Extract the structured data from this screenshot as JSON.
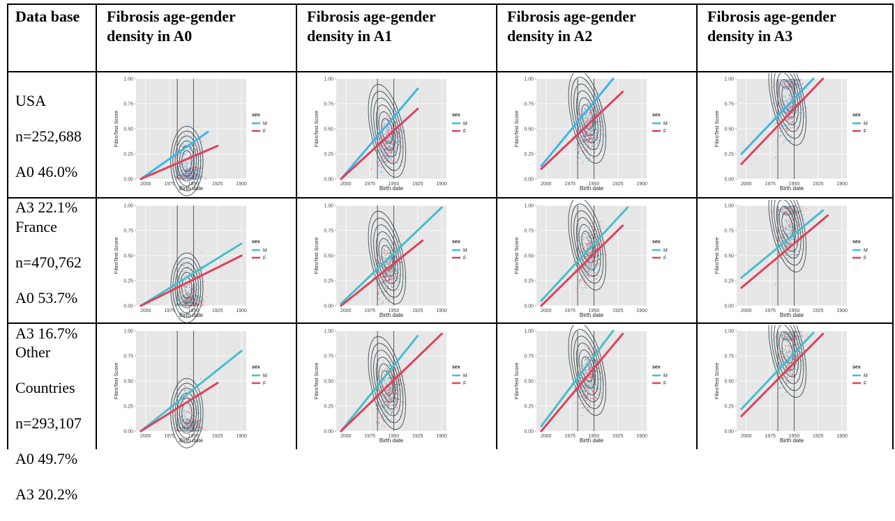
{
  "table": {
    "headers": [
      "Data base",
      "Fibrosis age-gender density in A0",
      "Fibrosis age-gender density in A1",
      "Fibrosis age-gender density in A2",
      "Fibrosis age-gender density in A3"
    ],
    "rows": [
      {
        "lines": [
          "USA",
          "n=252,688",
          "A0 46.0%",
          "A3 22.1%"
        ]
      },
      {
        "lines": [
          "France",
          "n=470,762",
          "A0 53.7%",
          "A3 16.7%"
        ]
      },
      {
        "lines": [
          "Other",
          "Countries",
          "n=293,107",
          "A0 49.7%",
          "A3 20.2%"
        ]
      }
    ]
  },
  "plot_labels": {
    "xlabel": "Birth date",
    "ylabel": "FibroTest Score",
    "x_ticks": [
      "2000",
      "1975",
      "1950",
      "1925",
      "1900"
    ],
    "y_ticks": [
      "0.00",
      "0.25",
      "0.50",
      "0.75",
      "1.00"
    ],
    "legend_title": "sex",
    "legend_items": [
      "M",
      "F"
    ]
  },
  "colors": {
    "usa_m": "#3ab7e8",
    "usa_f": "#e0405a",
    "other_m": "#45bfcc",
    "other_f": "#e0405a",
    "contour": "#4a5a60",
    "panel_bg": "#e6e6e6"
  },
  "chart_data": [
    {
      "type": "scatter",
      "row": "USA",
      "stage": "A0",
      "xlim": [
        2010,
        1895
      ],
      "ylim": [
        0,
        1
      ],
      "series": [
        {
          "name": "M",
          "x": [
            2005,
            1935
          ],
          "y": [
            0.0,
            0.47
          ]
        },
        {
          "name": "F",
          "x": [
            2005,
            1925
          ],
          "y": [
            0.0,
            0.33
          ]
        }
      ]
    },
    {
      "type": "scatter",
      "row": "USA",
      "stage": "A1",
      "xlim": [
        2010,
        1895
      ],
      "ylim": [
        0,
        1
      ],
      "series": [
        {
          "name": "M",
          "x": [
            2005,
            1925
          ],
          "y": [
            0.0,
            0.9
          ]
        },
        {
          "name": "F",
          "x": [
            2005,
            1925
          ],
          "y": [
            0.0,
            0.7
          ]
        }
      ]
    },
    {
      "type": "scatter",
      "row": "USA",
      "stage": "A2",
      "xlim": [
        2010,
        1895
      ],
      "ylim": [
        0,
        1
      ],
      "series": [
        {
          "name": "M",
          "x": [
            2005,
            1930
          ],
          "y": [
            0.13,
            1.0
          ]
        },
        {
          "name": "F",
          "x": [
            2005,
            1920
          ],
          "y": [
            0.1,
            0.87
          ]
        }
      ]
    },
    {
      "type": "scatter",
      "row": "USA",
      "stage": "A3",
      "xlim": [
        2010,
        1895
      ],
      "ylim": [
        0,
        1
      ],
      "series": [
        {
          "name": "M",
          "x": [
            2005,
            1930
          ],
          "y": [
            0.25,
            1.0
          ]
        },
        {
          "name": "F",
          "x": [
            2005,
            1920
          ],
          "y": [
            0.15,
            1.0
          ]
        }
      ]
    },
    {
      "type": "scatter",
      "row": "France",
      "stage": "A0",
      "xlim": [
        2010,
        1895
      ],
      "ylim": [
        0,
        1
      ],
      "series": [
        {
          "name": "M",
          "x": [
            2005,
            1900
          ],
          "y": [
            0.0,
            0.62
          ]
        },
        {
          "name": "F",
          "x": [
            2005,
            1900
          ],
          "y": [
            0.0,
            0.5
          ]
        }
      ]
    },
    {
      "type": "scatter",
      "row": "France",
      "stage": "A1",
      "xlim": [
        2010,
        1895
      ],
      "ylim": [
        0,
        1
      ],
      "series": [
        {
          "name": "M",
          "x": [
            2005,
            1900
          ],
          "y": [
            0.02,
            0.98
          ]
        },
        {
          "name": "F",
          "x": [
            2005,
            1920
          ],
          "y": [
            0.0,
            0.65
          ]
        }
      ]
    },
    {
      "type": "scatter",
      "row": "France",
      "stage": "A2",
      "xlim": [
        2010,
        1895
      ],
      "ylim": [
        0,
        1
      ],
      "series": [
        {
          "name": "M",
          "x": [
            2005,
            1915
          ],
          "y": [
            0.05,
            0.98
          ]
        },
        {
          "name": "F",
          "x": [
            2005,
            1920
          ],
          "y": [
            0.0,
            0.8
          ]
        }
      ]
    },
    {
      "type": "scatter",
      "row": "France",
      "stage": "A3",
      "xlim": [
        2010,
        1895
      ],
      "ylim": [
        0,
        1
      ],
      "series": [
        {
          "name": "M",
          "x": [
            2005,
            1920
          ],
          "y": [
            0.28,
            0.95
          ]
        },
        {
          "name": "F",
          "x": [
            2005,
            1915
          ],
          "y": [
            0.18,
            0.9
          ]
        }
      ]
    },
    {
      "type": "scatter",
      "row": "Other Countries",
      "stage": "A0",
      "xlim": [
        2010,
        1895
      ],
      "ylim": [
        0,
        1
      ],
      "series": [
        {
          "name": "M",
          "x": [
            2005,
            1900
          ],
          "y": [
            0.0,
            0.8
          ]
        },
        {
          "name": "F",
          "x": [
            2005,
            1925
          ],
          "y": [
            0.0,
            0.48
          ]
        }
      ]
    },
    {
      "type": "scatter",
      "row": "Other Countries",
      "stage": "A1",
      "xlim": [
        2010,
        1895
      ],
      "ylim": [
        0,
        1
      ],
      "series": [
        {
          "name": "M",
          "x": [
            2005,
            1925
          ],
          "y": [
            0.0,
            0.95
          ]
        },
        {
          "name": "F",
          "x": [
            2005,
            1900
          ],
          "y": [
            0.0,
            0.97
          ]
        }
      ]
    },
    {
      "type": "scatter",
      "row": "Other Countries",
      "stage": "A2",
      "xlim": [
        2010,
        1895
      ],
      "ylim": [
        0,
        1
      ],
      "series": [
        {
          "name": "M",
          "x": [
            2005,
            1930
          ],
          "y": [
            0.05,
            1.0
          ]
        },
        {
          "name": "F",
          "x": [
            2005,
            1920
          ],
          "y": [
            0.0,
            0.97
          ]
        }
      ]
    },
    {
      "type": "scatter",
      "row": "Other Countries",
      "stage": "A3",
      "xlim": [
        2010,
        1895
      ],
      "ylim": [
        0,
        1
      ],
      "series": [
        {
          "name": "M",
          "x": [
            2005,
            1930
          ],
          "y": [
            0.22,
            0.98
          ]
        },
        {
          "name": "F",
          "x": [
            2005,
            1920
          ],
          "y": [
            0.15,
            0.97
          ]
        }
      ]
    }
  ]
}
